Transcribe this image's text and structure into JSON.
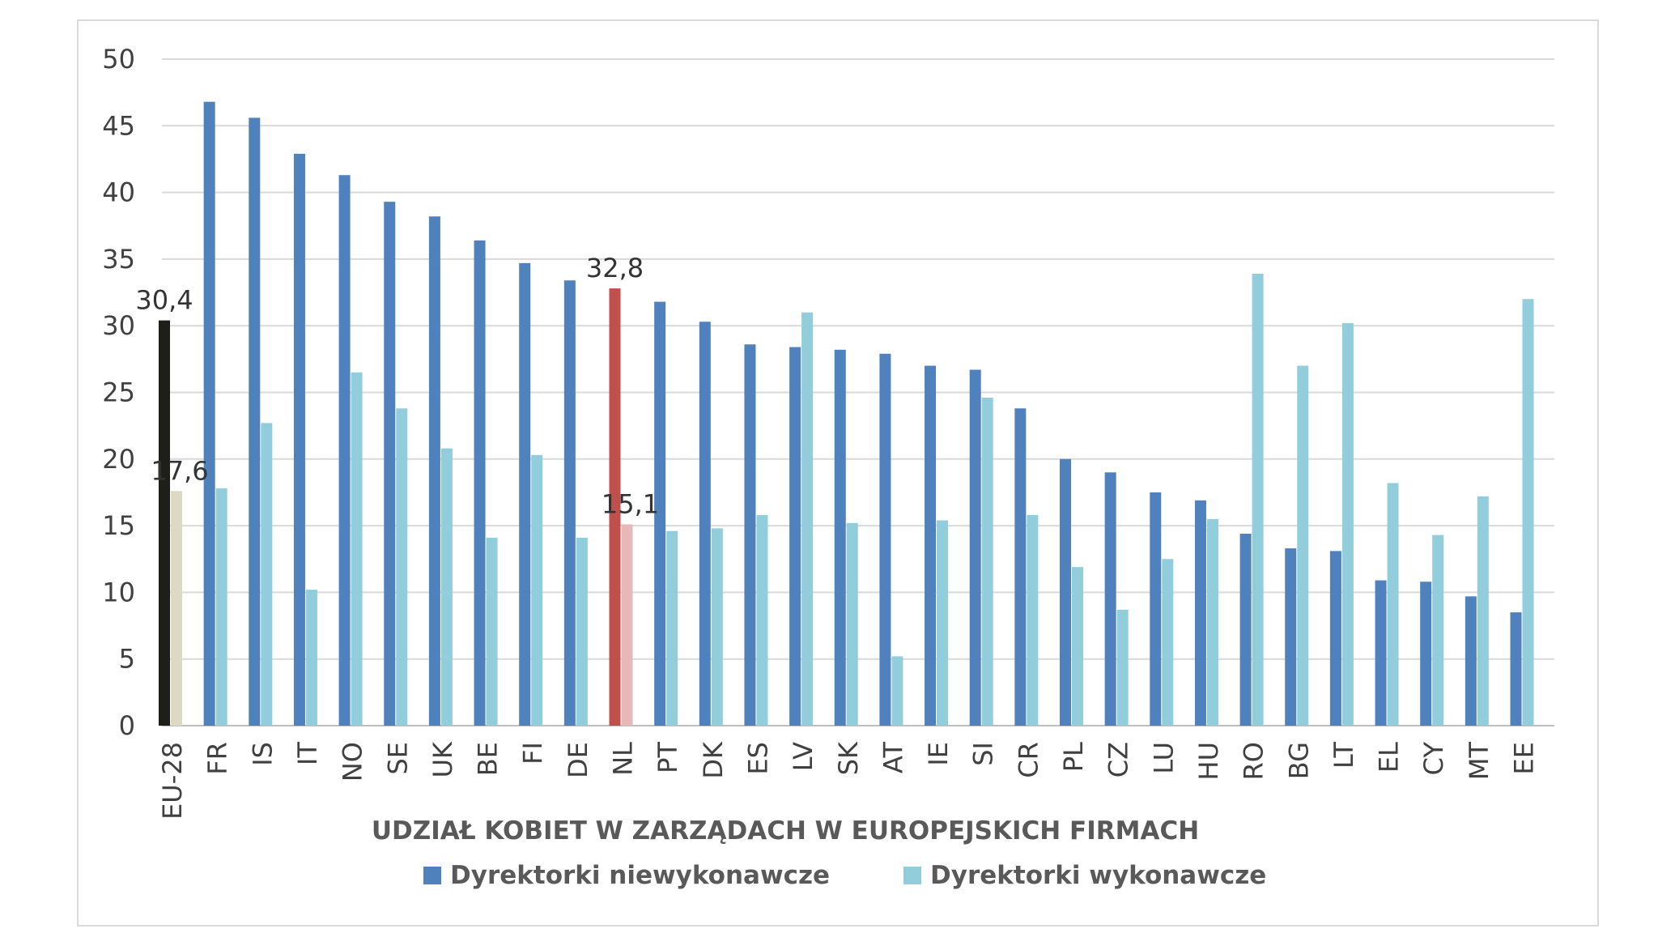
{
  "chart_data": {
    "type": "bar",
    "title": "UDZIAŁ KOBIET W ZARZĄDACH W EUROPEJSKICH FIRMACH",
    "xlabel": "",
    "ylabel": "",
    "ylim": [
      0,
      50
    ],
    "yticks": [
      0,
      5,
      10,
      15,
      20,
      25,
      30,
      35,
      40,
      45,
      50
    ],
    "grid": true,
    "legend_position": "bottom",
    "categories": [
      "EU-28",
      "FR",
      "IS",
      "IT",
      "NO",
      "SE",
      "UK",
      "BE",
      "FI",
      "DE",
      "NL",
      "PT",
      "DK",
      "ES",
      "LV",
      "SK",
      "AT",
      "IE",
      "SI",
      "CR",
      "PL",
      "CZ",
      "LU",
      "HU",
      "RO",
      "BG",
      "LT",
      "EL",
      "CY",
      "MT",
      "EE"
    ],
    "series": [
      {
        "name": "Dyrektorki niewykonawcze",
        "color": "#4f81bd",
        "values": [
          30.4,
          46.8,
          45.6,
          42.9,
          41.3,
          39.3,
          38.2,
          36.4,
          34.7,
          33.4,
          32.8,
          31.8,
          30.3,
          28.6,
          28.4,
          28.2,
          27.9,
          27.0,
          26.7,
          23.8,
          20.0,
          19.0,
          17.5,
          16.9,
          14.4,
          13.3,
          13.1,
          10.9,
          10.8,
          9.7,
          8.5
        ]
      },
      {
        "name": "Dyrektorki wykonawcze",
        "color": "#92cddc",
        "values": [
          17.6,
          17.8,
          22.7,
          10.2,
          26.5,
          23.8,
          20.8,
          14.1,
          20.3,
          14.1,
          15.1,
          14.6,
          14.8,
          15.8,
          31.0,
          15.2,
          5.2,
          15.4,
          24.6,
          15.8,
          11.9,
          8.7,
          12.5,
          15.5,
          33.9,
          27.0,
          30.2,
          18.2,
          14.3,
          17.2,
          32.0
        ]
      }
    ],
    "highlights": [
      {
        "category": "EU-28",
        "colors": [
          "#1f1f1a",
          "#ddd9c3"
        ]
      },
      {
        "category": "NL",
        "colors": [
          "#c0504d",
          "#e6b9b8"
        ]
      }
    ],
    "data_labels": [
      {
        "category": "EU-28",
        "series": 0,
        "text": "30,4"
      },
      {
        "category": "EU-28",
        "series": 1,
        "text": "17,6"
      },
      {
        "category": "NL",
        "series": 0,
        "text": "32,8"
      },
      {
        "category": "NL",
        "series": 1,
        "text": "15,1"
      }
    ]
  },
  "colors": {
    "gridline": "#d9d9d9",
    "axis": "#bfbfbf"
  }
}
